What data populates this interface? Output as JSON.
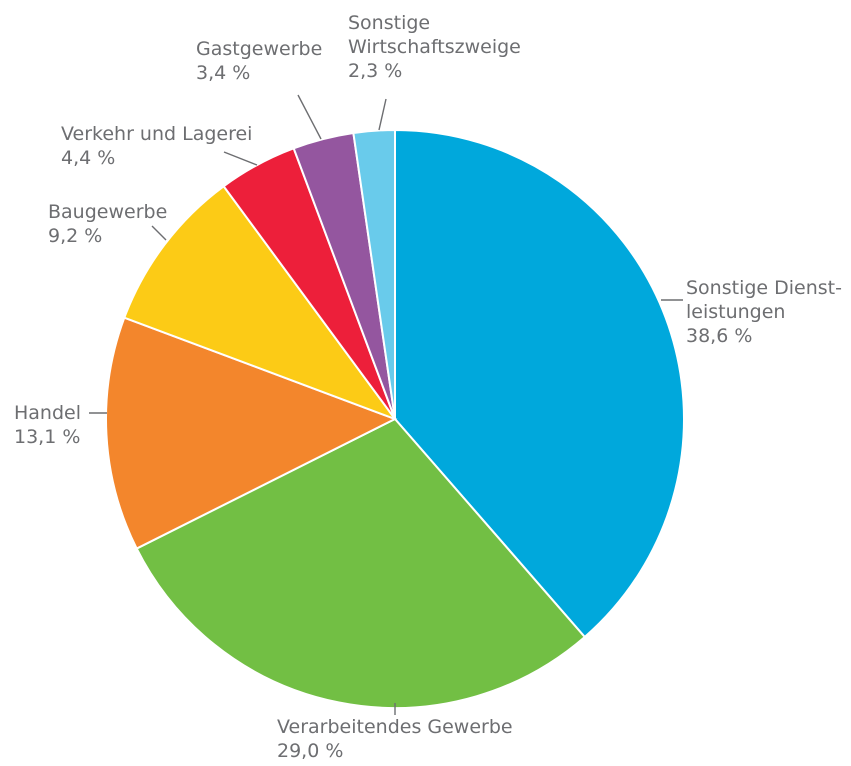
{
  "chart_data": {
    "type": "pie",
    "start": "12 o'clock",
    "direction": "clockwise",
    "slices": [
      {
        "label_lines": [
          "Sonstige Dienst-",
          "leistungen"
        ],
        "value_label": "38,6 %",
        "value": 38.6,
        "color": "#00a8dc"
      },
      {
        "label_lines": [
          "Verarbeitendes Gewerbe"
        ],
        "value_label": "29,0 %",
        "value": 29.0,
        "color": "#72bf44"
      },
      {
        "label_lines": [
          "Handel"
        ],
        "value_label": "13,1 %",
        "value": 13.1,
        "color": "#f3862c"
      },
      {
        "label_lines": [
          "Baugewerbe"
        ],
        "value_label": "9,2 %",
        "value": 9.2,
        "color": "#fccb16"
      },
      {
        "label_lines": [
          "Verkehr und Lagerei"
        ],
        "value_label": "4,4 %",
        "value": 4.4,
        "color": "#ed1f3a"
      },
      {
        "label_lines": [
          "Gastgewerbe"
        ],
        "value_label": "3,4 %",
        "value": 3.4,
        "color": "#94569f"
      },
      {
        "label_lines": [
          "Sonstige",
          "Wirtschaftszweige"
        ],
        "value_label": "2,3 %",
        "value": 2.3,
        "color": "#69cbeb"
      }
    ]
  }
}
